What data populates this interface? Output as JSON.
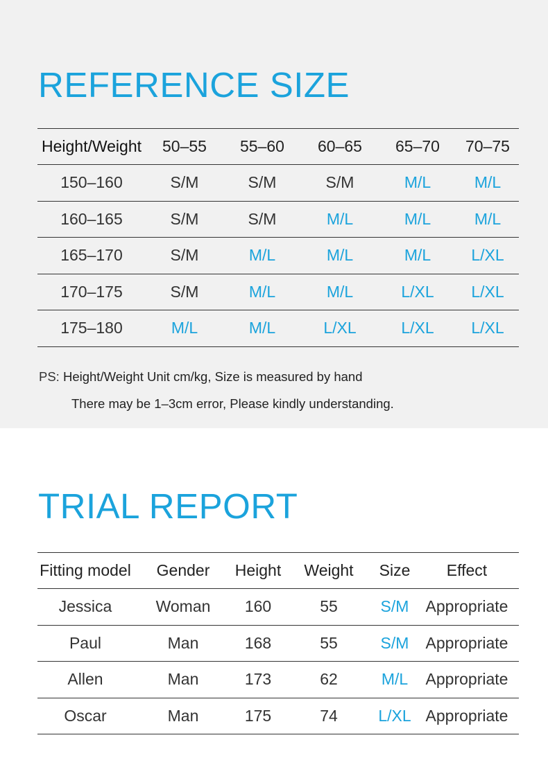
{
  "reference": {
    "title": "REFERENCE SIZE",
    "headers": [
      "Height/Weight",
      "50–55",
      "55–60",
      "60–65",
      "65–70",
      "70–75"
    ],
    "rows": [
      [
        "150–160",
        "S/M",
        "S/M",
        "S/M",
        "M/L",
        "M/L"
      ],
      [
        "160–165",
        "S/M",
        "S/M",
        "M/L",
        "M/L",
        "M/L"
      ],
      [
        "165–170",
        "S/M",
        "M/L",
        "M/L",
        "M/L",
        "L/XL"
      ],
      [
        "170–175",
        "S/M",
        "M/L",
        "M/L",
        "L/XL",
        "L/XL"
      ],
      [
        "175–180",
        "M/L",
        "M/L",
        "L/XL",
        "L/XL",
        "L/XL"
      ]
    ],
    "highlighted_sizes": [
      "M/L",
      "L/XL"
    ],
    "note_label": "PS:",
    "note_line1": "Height/Weight Unit cm/kg,  Size is measured by hand",
    "note_line2": "There may be 1–3cm error,  Please kindly understanding."
  },
  "trial": {
    "title": "TRIAL REPORT",
    "headers": [
      "Fitting model",
      "Gender",
      "Height",
      "Weight",
      "Size",
      "Effect"
    ],
    "rows": [
      [
        "Jessica",
        "Woman",
        "160",
        "55",
        "S/M",
        "Appropriate"
      ],
      [
        "Paul",
        "Man",
        "168",
        "55",
        "S/M",
        "Appropriate"
      ],
      [
        "Allen",
        "Man",
        "173",
        "62",
        "M/L",
        "Appropriate"
      ],
      [
        "Oscar",
        "Man",
        "175",
        "74",
        "L/XL",
        "Appropriate"
      ]
    ]
  },
  "colors": {
    "accent": "#1ba3dc",
    "top_background": "#f1f1f1",
    "text": "#222222"
  }
}
